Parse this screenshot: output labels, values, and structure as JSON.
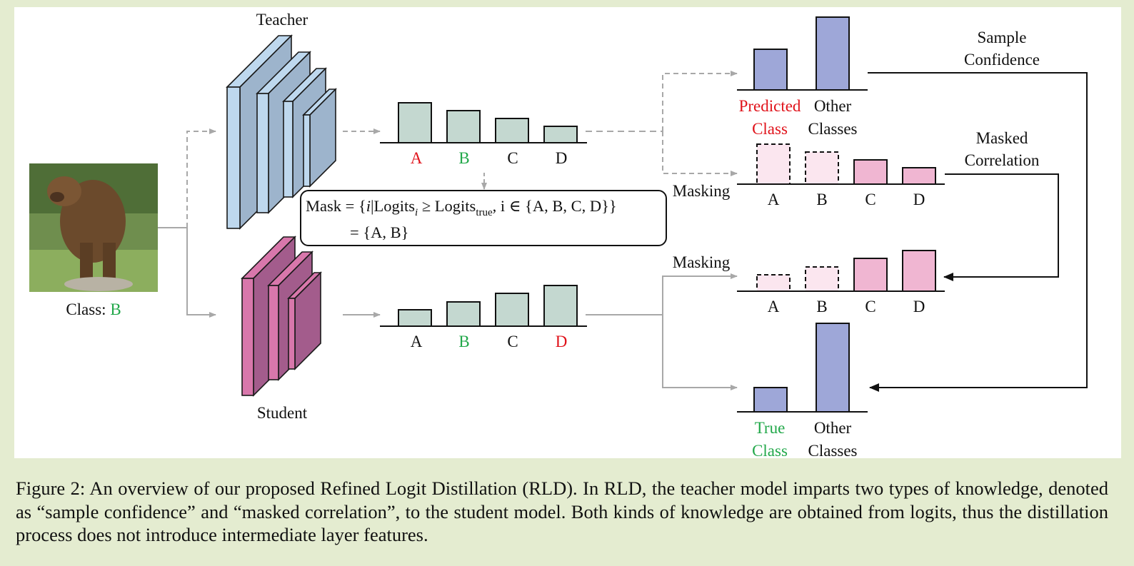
{
  "teacher_label": "Teacher",
  "student_label": "Student",
  "input": {
    "class_prefix": "Class: ",
    "class_value": "B"
  },
  "classes": [
    "A",
    "B",
    "C",
    "D"
  ],
  "mask_formula": {
    "line1_prefix": "Mask = {",
    "var_i": "i",
    "logits": "|Logits",
    "sub_i": "i",
    "geq": " ≥ Logits",
    "sub_true": "true",
    "line1_suffix": ", i ∈ {A, B, C, D}}",
    "line2": "= {A, B}"
  },
  "masking_label": "Masking",
  "sample_confidence": [
    "Sample",
    "Confidence"
  ],
  "masked_correlation": [
    "Masked",
    "Correlation"
  ],
  "predicted_class": [
    "Predicted",
    "Class"
  ],
  "true_class": [
    "True",
    "Class"
  ],
  "other_classes": [
    "Other",
    "Classes"
  ],
  "caption": "Figure 2: An overview of our proposed Refined Logit Distillation (RLD). In RLD, the teacher model imparts two types of knowledge, denoted as “sample confidence” and “masked correlation”, to the student model. Both kinds of knowledge are obtained from logits, thus the distillation process does not introduce intermediate layer features.",
  "colors": {
    "teacher_block": "#bed8ee",
    "teacher_block_front": "#9db4cc",
    "student_block": "#d877ab",
    "student_block_front": "#a35c8c",
    "logit_bar": "#c4d8d0",
    "confidence_bar": "#9ea7d8",
    "correlation_bar": "#f0b6d2",
    "masked_bar": "#fbe6ef",
    "highlight_red": "#e0121a",
    "highlight_green": "#22a84a",
    "background": "#e4ecd0"
  },
  "chart_data": [
    {
      "type": "bar",
      "name": "teacher_logits",
      "categories": [
        "A",
        "B",
        "C",
        "D"
      ],
      "values": [
        56,
        45,
        34,
        23
      ]
    },
    {
      "type": "bar",
      "name": "student_logits",
      "categories": [
        "A",
        "B",
        "C",
        "D"
      ],
      "values": [
        23,
        34,
        46,
        57
      ]
    },
    {
      "type": "bar",
      "name": "sample_confidence_teacher",
      "categories": [
        "Predicted Class",
        "Other Classes"
      ],
      "values": [
        57,
        102
      ]
    },
    {
      "type": "bar",
      "name": "sample_confidence_student",
      "categories": [
        "True Class",
        "Other Classes"
      ],
      "values": [
        34,
        124
      ]
    },
    {
      "type": "bar",
      "name": "masked_correlation_teacher",
      "categories": [
        "A",
        "B",
        "C",
        "D"
      ],
      "values": [
        56,
        45,
        34,
        23
      ],
      "masked": [
        true,
        true,
        false,
        false
      ]
    },
    {
      "type": "bar",
      "name": "masked_correlation_student",
      "categories": [
        "A",
        "B",
        "C",
        "D"
      ],
      "values": [
        23,
        34,
        46,
        57
      ],
      "masked": [
        true,
        true,
        false,
        false
      ]
    }
  ]
}
